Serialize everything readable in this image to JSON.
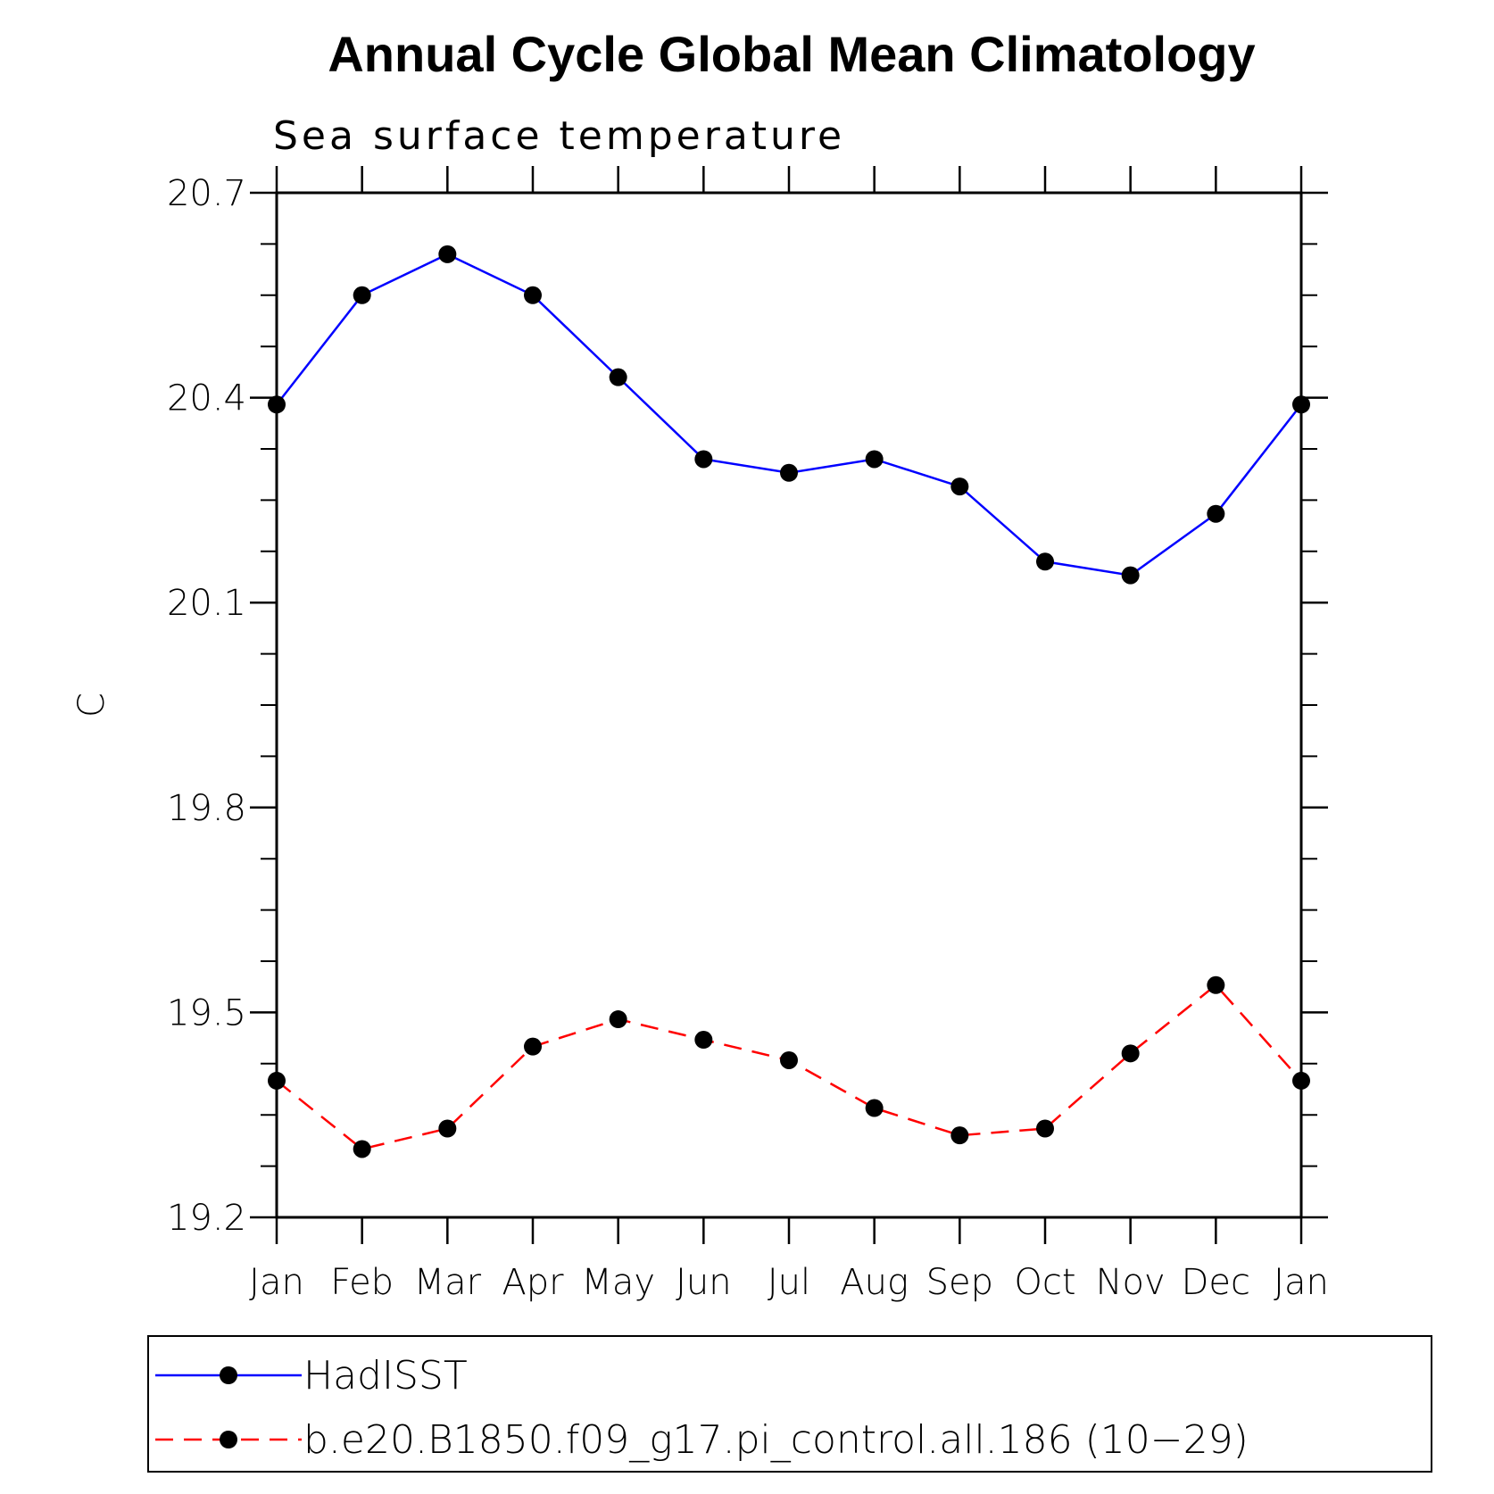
{
  "chart_data": {
    "type": "line",
    "title": "Annual Cycle Global Mean Climatology",
    "subtitle": "Sea surface temperature",
    "xlabel": "",
    "ylabel": "C",
    "categories": [
      "Jan",
      "Feb",
      "Mar",
      "Apr",
      "May",
      "Jun",
      "Jul",
      "Aug",
      "Sep",
      "Oct",
      "Nov",
      "Dec",
      "Jan"
    ],
    "ylim": [
      19.2,
      20.7
    ],
    "yticks": [
      "20.7",
      "20.4",
      "20.1",
      "19.8",
      "19.5",
      "19.2"
    ],
    "series": [
      {
        "name": "HadISST",
        "color": "#0000ff",
        "line_style": "solid",
        "values": [
          20.39,
          20.55,
          20.61,
          20.55,
          20.43,
          20.31,
          20.29,
          20.31,
          20.27,
          20.16,
          20.14,
          20.23,
          20.39
        ]
      },
      {
        "name": "b.e20.B1850.f09_g17.pi_control.all.186 (10−29)",
        "color": "#ff0000",
        "line_style": "dashed",
        "values": [
          19.4,
          19.3,
          19.33,
          19.45,
          19.49,
          19.46,
          19.43,
          19.36,
          19.32,
          19.33,
          19.44,
          19.54,
          19.4
        ]
      }
    ],
    "marker": "filled-circle",
    "marker_color": "#000000",
    "legend_position": "bottom"
  }
}
